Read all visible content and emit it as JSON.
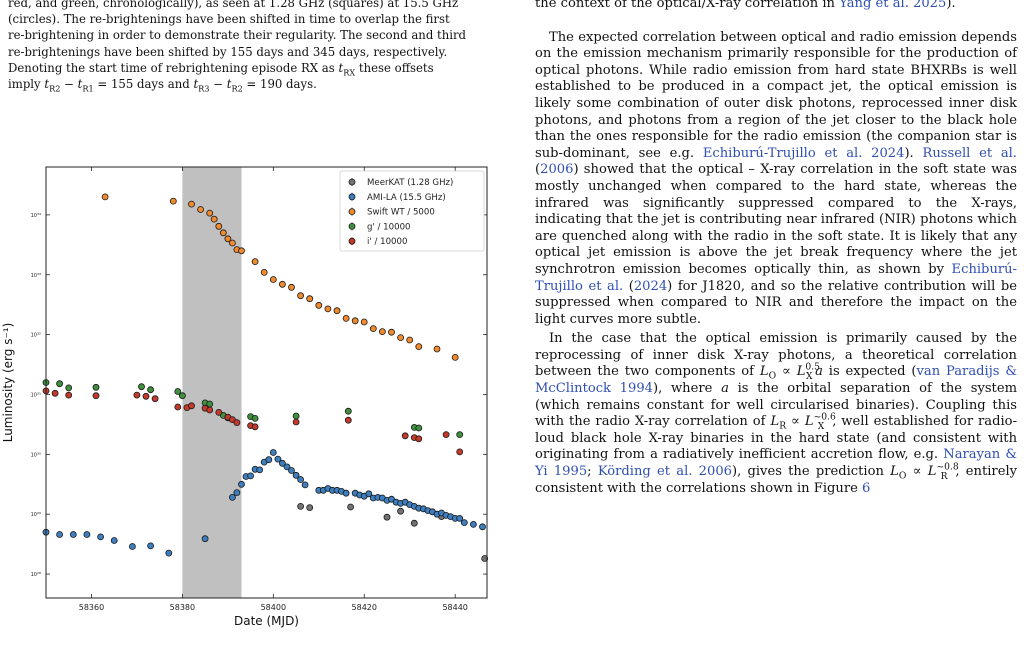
{
  "caption": {
    "lines": [
      "red, and green, chronologically), as seen at 1.28 GHz (squares) at 15.5 GHz",
      "(circles). The re-brightenings have been shifted in time to overlap the first",
      "re-brightening in order to demonstrate their regularity. The second and third",
      "re-brightenings have been shifted by 155 days and 345 days, respectively.",
      "Denoting the start time of rebrightening episode RX as t_RX these offsets",
      "imply t_R2 − t_R1 = 155 days and t_R3 − t_R2 = 190 days."
    ],
    "l1": "red, and green, chronologically), as seen at 1.28 GHz (squares) at 15.5 GHz",
    "l2": "(circles). The re-brightenings have been shifted in time to overlap the first",
    "l3": "re-brightening in order to demonstrate their regularity. The second and third",
    "l4": "re-brightenings have been shifted by 155 days and 345 days, respectively.",
    "l5a": "Denoting the start time of rebrightening episode RX as ",
    "l5b": " these offsets",
    "l6a": "imply ",
    "l6b": " = 155 days and ",
    "l6c": " = 190 days."
  },
  "right": {
    "top_line_a": "the context of the optical/X-ray correlation in ",
    "top_line_cite": "Yang et al. 2025",
    "top_line_b": ").",
    "p1_a": "The expected correlation between optical and radio emission depends on the emission mechanism primarily responsible for the production of optical photons. While radio emission from hard state BHXRBs is well established to be produced in a compact jet, the optical emission is likely some combination of outer disk photons, reprocessed inner disk photons, and photons from a region of the jet closer to the black hole than the ones responsible for the radio emission (the companion star is sub-dominant, see e.g. ",
    "p1_cite1": "Echiburú-Trujillo et al. 2024",
    "p1_b": "). ",
    "p1_cite2": "Russell et al.",
    "p1_c": " (",
    "p1_cite3": "2006",
    "p1_d": ") showed that the optical – X-ray correlation in the soft state was mostly unchanged when compared to the hard state, whereas the infrared was significantly suppressed compared to the X-rays, indicating that the jet is contributing near infrared (NIR) photons which are quenched along with the radio in the soft state. It is likely that any optical jet emission is above the jet break frequency where the jet synchrotron emission becomes optically thin, as shown by ",
    "p1_cite4": "Echiburú-Trujillo et al.",
    "p1_e": " (",
    "p1_cite5": "2024",
    "p1_f": ") for J1820, and so the relative contribution will be suppressed when compared to NIR and therefore the impact on the light curves more subtle.",
    "p2_a": "In the case that the optical emission is primarily caused by the reprocessing of inner disk X-ray photons, a theoretical correlation between the two components of ",
    "p2_b": " is expected (",
    "p2_cite1": "van Paradijs & McClintock 1994",
    "p2_c": "), where ",
    "p2_d": " is the orbital separation of the system (which remains constant for well circularised binaries). Coupling this with the radio X-ray correlation of ",
    "p2_e": ", well established for radio-loud black hole X-ray binaries in the hard state (and consistent with originating from a radiatively inefficient accretion flow, e.g. ",
    "p2_cite2": "Narayan & Yi 1995",
    "p2_f": "; ",
    "p2_cite3": "Körding et al. 2006",
    "p2_g": "), gives the prediction ",
    "p2_h": ", entirely consistent with the correlations shown in Figure ",
    "p2_cite4": "6",
    "sym_a": "a",
    "sym_lo": "L",
    "sym_o": "O",
    "sym_prop": " ∝ ",
    "sym_lx": "L",
    "sym_x": "X",
    "sym_05": "0.5",
    "sym_lr": "L",
    "sym_r": "R",
    "sym_06": "~0.6",
    "sym_08": "~0.8",
    "sym_t": "t",
    "sym_rx": "RX",
    "sym_r1": "R1",
    "sym_r2": "R2",
    "sym_r3": "R3",
    "sym_minus": " − "
  },
  "chart_data": {
    "type": "scatter",
    "title": "",
    "xlabel": "Date (MJD)",
    "ylabel": "Luminosity (erg s⁻¹)",
    "xlim": [
      58350,
      58447
    ],
    "ylim_log10": [
      27.6,
      34.8
    ],
    "yscale": "log",
    "x_ticks": [
      58360,
      58380,
      58400,
      58420,
      58440
    ],
    "y_ticks": [
      "10²⁸",
      "10²⁹",
      "10³⁰",
      "10³¹",
      "10³²",
      "10³³",
      "10³⁴"
    ],
    "y_tick_exponents": [
      28,
      29,
      30,
      31,
      32,
      33,
      34
    ],
    "shaded_band": [
      58380,
      58393
    ],
    "legend_position": "top-right",
    "series": [
      {
        "name": "MeerKAT (1.28 GHz)",
        "color": "#737373",
        "points": [
          [
            58406,
            29.13
          ],
          [
            58408,
            29.11
          ],
          [
            58417,
            29.12
          ],
          [
            58425,
            28.95
          ],
          [
            58428,
            29.05
          ],
          [
            58431,
            28.85
          ],
          [
            58437,
            28.96
          ],
          [
            58446.5,
            28.26
          ]
        ]
      },
      {
        "name": "AMI-LA (15.5 GHz)",
        "color": "#3d7ebf",
        "points": [
          [
            58350,
            28.7
          ],
          [
            58353,
            28.66
          ],
          [
            58356,
            28.66
          ],
          [
            58359,
            28.66
          ],
          [
            58362,
            28.62
          ],
          [
            58365,
            28.56
          ],
          [
            58369,
            28.46
          ],
          [
            58373,
            28.47
          ],
          [
            58377,
            28.35
          ],
          [
            58385,
            28.59
          ],
          [
            58391,
            29.28
          ],
          [
            58392,
            29.36
          ],
          [
            58393,
            29.5
          ],
          [
            58394,
            29.63
          ],
          [
            58395,
            29.64
          ],
          [
            58396,
            29.75
          ],
          [
            58397,
            29.74
          ],
          [
            58398,
            29.87
          ],
          [
            58399,
            29.91
          ],
          [
            58400,
            30.03
          ],
          [
            58401,
            29.92
          ],
          [
            58402,
            29.85
          ],
          [
            58403,
            29.79
          ],
          [
            58404,
            29.73
          ],
          [
            58405,
            29.65
          ],
          [
            58406,
            29.58
          ],
          [
            58407,
            29.49
          ],
          [
            58410,
            29.4
          ],
          [
            58411,
            29.4
          ],
          [
            58412,
            29.43
          ],
          [
            58413,
            29.4
          ],
          [
            58414,
            29.4
          ],
          [
            58415,
            29.38
          ],
          [
            58416,
            29.35
          ],
          [
            58418,
            29.35
          ],
          [
            58419,
            29.32
          ],
          [
            58420,
            29.3
          ],
          [
            58421,
            29.34
          ],
          [
            58422,
            29.27
          ],
          [
            58423,
            29.28
          ],
          [
            58424,
            29.27
          ],
          [
            58425,
            29.23
          ],
          [
            58426,
            29.25
          ],
          [
            58427,
            29.2
          ],
          [
            58428,
            29.18
          ],
          [
            58429,
            29.2
          ],
          [
            58430,
            29.16
          ],
          [
            58431,
            29.13
          ],
          [
            58432,
            29.1
          ],
          [
            58433,
            29.09
          ],
          [
            58434,
            29.06
          ],
          [
            58435,
            29.04
          ],
          [
            58436,
            29.0
          ],
          [
            58437,
            29.02
          ],
          [
            58438,
            28.98
          ],
          [
            58439,
            28.96
          ],
          [
            58440,
            28.93
          ],
          [
            58441,
            28.93
          ],
          [
            58442,
            28.86
          ],
          [
            58444,
            28.83
          ],
          [
            58446,
            28.79
          ]
        ]
      },
      {
        "name": "Swift WT / 5000",
        "color": "#ef8a2e",
        "points": [
          [
            58363,
            34.3
          ],
          [
            58378,
            34.23
          ],
          [
            58382,
            34.18
          ],
          [
            58384,
            34.09
          ],
          [
            58386,
            34.03
          ],
          [
            58387,
            33.93
          ],
          [
            58388,
            33.81
          ],
          [
            58389,
            33.7
          ],
          [
            58390,
            33.6
          ],
          [
            58391,
            33.53
          ],
          [
            58392,
            33.42
          ],
          [
            58393,
            33.4
          ],
          [
            58396,
            33.22
          ],
          [
            58398,
            33.04
          ],
          [
            58400,
            32.92
          ],
          [
            58402,
            32.84
          ],
          [
            58404,
            32.79
          ],
          [
            58406,
            32.65
          ],
          [
            58408,
            32.6
          ],
          [
            58410,
            32.49
          ],
          [
            58412,
            32.43
          ],
          [
            58414,
            32.4
          ],
          [
            58416,
            32.27
          ],
          [
            58418,
            32.23
          ],
          [
            58420,
            32.21
          ],
          [
            58422,
            32.1
          ],
          [
            58424,
            32.05
          ],
          [
            58426,
            32.04
          ],
          [
            58428,
            31.95
          ],
          [
            58430,
            31.91
          ],
          [
            58432,
            31.8
          ],
          [
            58436,
            31.76
          ],
          [
            58440,
            31.62
          ]
        ]
      },
      {
        "name": "g' / 10000",
        "color": "#3e8f3e",
        "points": [
          [
            58350,
            31.2
          ],
          [
            58353,
            31.18
          ],
          [
            58355,
            31.11
          ],
          [
            58361,
            31.12
          ],
          [
            58371,
            31.13
          ],
          [
            58373,
            31.08
          ],
          [
            58379,
            31.05
          ],
          [
            58380,
            30.98
          ],
          [
            58385,
            30.86
          ],
          [
            58386,
            30.84
          ],
          [
            58389,
            30.65
          ],
          [
            58390,
            30.61
          ],
          [
            58395,
            30.63
          ],
          [
            58396,
            30.6
          ],
          [
            58405,
            30.64
          ],
          [
            58416.5,
            30.72
          ],
          [
            58431,
            30.45
          ],
          [
            58432,
            30.44
          ],
          [
            58441,
            30.33
          ]
        ]
      },
      {
        "name": "i' / 10000",
        "color": "#c23a2c",
        "points": [
          [
            58350,
            31.06
          ],
          [
            58352,
            31.02
          ],
          [
            58355,
            30.99
          ],
          [
            58361,
            30.98
          ],
          [
            58370,
            30.99
          ],
          [
            58372,
            30.97
          ],
          [
            58374,
            30.93
          ],
          [
            58379,
            30.79
          ],
          [
            58381,
            30.78
          ],
          [
            58382,
            30.81
          ],
          [
            58385,
            30.77
          ],
          [
            58386,
            30.74
          ],
          [
            58388,
            30.7
          ],
          [
            58390,
            30.62
          ],
          [
            58391,
            30.58
          ],
          [
            58392,
            30.53
          ],
          [
            58395,
            30.48
          ],
          [
            58396,
            30.46
          ],
          [
            58405,
            30.54
          ],
          [
            58416.5,
            30.57
          ],
          [
            58429,
            30.31
          ],
          [
            58431,
            30.28
          ],
          [
            58432,
            30.26
          ],
          [
            58438,
            30.33
          ],
          [
            58441,
            30.04
          ]
        ]
      }
    ]
  }
}
